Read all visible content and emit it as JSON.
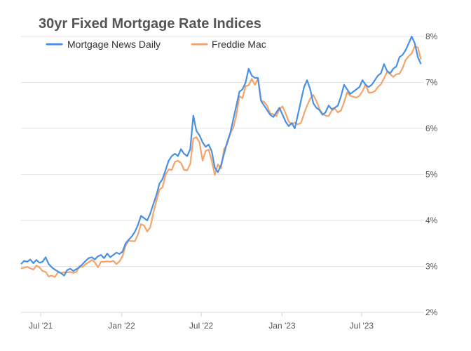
{
  "chart_data": {
    "type": "line",
    "title": "30yr Fixed Mortgage Rate Indices",
    "xlabel": "",
    "ylabel": "",
    "legend_position": "top-left",
    "grid": true,
    "ylim": [
      2,
      8
    ],
    "y_ticks": [
      {
        "value": 2,
        "label": "2%"
      },
      {
        "value": 3,
        "label": "3%"
      },
      {
        "value": 4,
        "label": "4%"
      },
      {
        "value": 5,
        "label": "5%"
      },
      {
        "value": 6,
        "label": "6%"
      },
      {
        "value": 7,
        "label": "7%"
      },
      {
        "value": 8,
        "label": "8%"
      }
    ],
    "x_ticks": [
      {
        "value": "2021-07-01",
        "label": "Jul '21"
      },
      {
        "value": "2022-01-01",
        "label": "Jan '22"
      },
      {
        "value": "2022-07-01",
        "label": "Jul '22"
      },
      {
        "value": "2023-01-01",
        "label": "Jan '23"
      },
      {
        "value": "2023-07-01",
        "label": "Jul '23"
      }
    ],
    "xlim": [
      "2021-05-17",
      "2023-11-20"
    ],
    "series": [
      {
        "name": "Mortgage News Daily",
        "color": "#4a90e2",
        "points": [
          [
            "2021-05-17",
            3.05
          ],
          [
            "2021-05-24",
            3.12
          ],
          [
            "2021-05-31",
            3.1
          ],
          [
            "2021-06-07",
            3.15
          ],
          [
            "2021-06-14",
            3.07
          ],
          [
            "2021-06-21",
            3.14
          ],
          [
            "2021-06-28",
            3.08
          ],
          [
            "2021-07-05",
            3.1
          ],
          [
            "2021-07-12",
            3.2
          ],
          [
            "2021-07-19",
            3.05
          ],
          [
            "2021-07-26",
            2.98
          ],
          [
            "2021-08-02",
            2.93
          ],
          [
            "2021-08-09",
            2.89
          ],
          [
            "2021-08-16",
            2.85
          ],
          [
            "2021-08-23",
            2.8
          ],
          [
            "2021-08-30",
            2.92
          ],
          [
            "2021-09-06",
            2.95
          ],
          [
            "2021-09-13",
            2.9
          ],
          [
            "2021-09-20",
            2.94
          ],
          [
            "2021-09-27",
            2.98
          ],
          [
            "2021-10-04",
            3.05
          ],
          [
            "2021-10-11",
            3.12
          ],
          [
            "2021-10-18",
            3.18
          ],
          [
            "2021-10-25",
            3.2
          ],
          [
            "2021-11-01",
            3.15
          ],
          [
            "2021-11-08",
            3.22
          ],
          [
            "2021-11-15",
            3.25
          ],
          [
            "2021-11-22",
            3.18
          ],
          [
            "2021-11-29",
            3.28
          ],
          [
            "2021-12-06",
            3.2
          ],
          [
            "2021-12-13",
            3.25
          ],
          [
            "2021-12-20",
            3.3
          ],
          [
            "2021-12-27",
            3.27
          ],
          [
            "2022-01-03",
            3.32
          ],
          [
            "2022-01-10",
            3.5
          ],
          [
            "2022-01-17",
            3.58
          ],
          [
            "2022-01-24",
            3.65
          ],
          [
            "2022-01-31",
            3.75
          ],
          [
            "2022-02-07",
            3.9
          ],
          [
            "2022-02-14",
            4.1
          ],
          [
            "2022-02-21",
            4.05
          ],
          [
            "2022-02-28",
            4.0
          ],
          [
            "2022-03-07",
            4.15
          ],
          [
            "2022-03-14",
            4.35
          ],
          [
            "2022-03-21",
            4.55
          ],
          [
            "2022-03-28",
            4.8
          ],
          [
            "2022-04-04",
            4.9
          ],
          [
            "2022-04-11",
            5.1
          ],
          [
            "2022-04-18",
            5.3
          ],
          [
            "2022-04-25",
            5.4
          ],
          [
            "2022-05-02",
            5.45
          ],
          [
            "2022-05-09",
            5.4
          ],
          [
            "2022-05-16",
            5.55
          ],
          [
            "2022-05-23",
            5.45
          ],
          [
            "2022-05-30",
            5.4
          ],
          [
            "2022-06-06",
            5.55
          ],
          [
            "2022-06-13",
            6.28
          ],
          [
            "2022-06-20",
            5.95
          ],
          [
            "2022-06-27",
            5.85
          ],
          [
            "2022-07-04",
            5.7
          ],
          [
            "2022-07-11",
            5.6
          ],
          [
            "2022-07-18",
            5.65
          ],
          [
            "2022-07-25",
            5.5
          ],
          [
            "2022-08-01",
            5.15
          ],
          [
            "2022-08-08",
            5.05
          ],
          [
            "2022-08-15",
            5.2
          ],
          [
            "2022-08-22",
            5.45
          ],
          [
            "2022-08-29",
            5.7
          ],
          [
            "2022-09-05",
            5.9
          ],
          [
            "2022-09-12",
            6.2
          ],
          [
            "2022-09-19",
            6.5
          ],
          [
            "2022-09-26",
            6.8
          ],
          [
            "2022-10-03",
            6.85
          ],
          [
            "2022-10-10",
            7.0
          ],
          [
            "2022-10-17",
            7.3
          ],
          [
            "2022-10-24",
            7.15
          ],
          [
            "2022-10-31",
            7.1
          ],
          [
            "2022-11-07",
            7.1
          ],
          [
            "2022-11-14",
            6.6
          ],
          [
            "2022-11-21",
            6.5
          ],
          [
            "2022-11-28",
            6.4
          ],
          [
            "2022-12-05",
            6.3
          ],
          [
            "2022-12-12",
            6.25
          ],
          [
            "2022-12-19",
            6.35
          ],
          [
            "2022-12-26",
            6.45
          ],
          [
            "2023-01-02",
            6.3
          ],
          [
            "2023-01-09",
            6.15
          ],
          [
            "2023-01-16",
            6.05
          ],
          [
            "2023-01-23",
            6.12
          ],
          [
            "2023-01-30",
            6.0
          ],
          [
            "2023-02-06",
            6.3
          ],
          [
            "2023-02-13",
            6.6
          ],
          [
            "2023-02-20",
            6.9
          ],
          [
            "2023-02-27",
            7.05
          ],
          [
            "2023-03-06",
            6.85
          ],
          [
            "2023-03-13",
            6.55
          ],
          [
            "2023-03-20",
            6.45
          ],
          [
            "2023-03-27",
            6.4
          ],
          [
            "2023-04-03",
            6.3
          ],
          [
            "2023-04-10",
            6.35
          ],
          [
            "2023-04-17",
            6.5
          ],
          [
            "2023-04-24",
            6.42
          ],
          [
            "2023-05-01",
            6.45
          ],
          [
            "2023-05-08",
            6.5
          ],
          [
            "2023-05-15",
            6.7
          ],
          [
            "2023-05-22",
            6.95
          ],
          [
            "2023-05-29",
            6.85
          ],
          [
            "2023-06-05",
            6.75
          ],
          [
            "2023-06-12",
            6.8
          ],
          [
            "2023-06-19",
            6.85
          ],
          [
            "2023-06-26",
            6.9
          ],
          [
            "2023-07-03",
            7.05
          ],
          [
            "2023-07-10",
            6.95
          ],
          [
            "2023-07-17",
            6.9
          ],
          [
            "2023-07-24",
            6.95
          ],
          [
            "2023-07-31",
            7.05
          ],
          [
            "2023-08-07",
            7.15
          ],
          [
            "2023-08-14",
            7.2
          ],
          [
            "2023-08-21",
            7.4
          ],
          [
            "2023-08-28",
            7.25
          ],
          [
            "2023-09-04",
            7.2
          ],
          [
            "2023-09-11",
            7.3
          ],
          [
            "2023-09-18",
            7.35
          ],
          [
            "2023-09-25",
            7.55
          ],
          [
            "2023-10-02",
            7.6
          ],
          [
            "2023-10-09",
            7.7
          ],
          [
            "2023-10-16",
            7.85
          ],
          [
            "2023-10-23",
            8.0
          ],
          [
            "2023-10-30",
            7.85
          ],
          [
            "2023-11-06",
            7.55
          ],
          [
            "2023-11-13",
            7.4
          ]
        ]
      },
      {
        "name": "Freddie Mac",
        "color": "#f4a46a",
        "points": [
          [
            "2021-05-17",
            2.96
          ],
          [
            "2021-05-24",
            2.97
          ],
          [
            "2021-05-31",
            2.99
          ],
          [
            "2021-06-07",
            2.96
          ],
          [
            "2021-06-14",
            2.93
          ],
          [
            "2021-06-21",
            3.02
          ],
          [
            "2021-06-28",
            2.98
          ],
          [
            "2021-07-05",
            2.9
          ],
          [
            "2021-07-12",
            2.88
          ],
          [
            "2021-07-19",
            2.78
          ],
          [
            "2021-07-26",
            2.8
          ],
          [
            "2021-08-02",
            2.77
          ],
          [
            "2021-08-09",
            2.87
          ],
          [
            "2021-08-16",
            2.86
          ],
          [
            "2021-08-23",
            2.87
          ],
          [
            "2021-08-30",
            2.87
          ],
          [
            "2021-09-06",
            2.88
          ],
          [
            "2021-09-13",
            2.86
          ],
          [
            "2021-09-20",
            2.88
          ],
          [
            "2021-09-27",
            3.01
          ],
          [
            "2021-10-04",
            2.99
          ],
          [
            "2021-10-11",
            3.05
          ],
          [
            "2021-10-18",
            3.09
          ],
          [
            "2021-10-25",
            3.14
          ],
          [
            "2021-11-01",
            3.09
          ],
          [
            "2021-11-08",
            2.98
          ],
          [
            "2021-11-15",
            3.1
          ],
          [
            "2021-11-22",
            3.1
          ],
          [
            "2021-11-29",
            3.11
          ],
          [
            "2021-12-06",
            3.1
          ],
          [
            "2021-12-13",
            3.12
          ],
          [
            "2021-12-20",
            3.05
          ],
          [
            "2021-12-27",
            3.11
          ],
          [
            "2022-01-03",
            3.22
          ],
          [
            "2022-01-10",
            3.45
          ],
          [
            "2022-01-17",
            3.56
          ],
          [
            "2022-01-24",
            3.55
          ],
          [
            "2022-01-31",
            3.55
          ],
          [
            "2022-02-07",
            3.69
          ],
          [
            "2022-02-14",
            3.92
          ],
          [
            "2022-02-21",
            3.89
          ],
          [
            "2022-02-28",
            3.76
          ],
          [
            "2022-03-07",
            3.85
          ],
          [
            "2022-03-14",
            4.16
          ],
          [
            "2022-03-21",
            4.42
          ],
          [
            "2022-03-28",
            4.67
          ],
          [
            "2022-04-04",
            4.72
          ],
          [
            "2022-04-11",
            5.0
          ],
          [
            "2022-04-18",
            5.11
          ],
          [
            "2022-04-25",
            5.1
          ],
          [
            "2022-05-02",
            5.27
          ],
          [
            "2022-05-09",
            5.3
          ],
          [
            "2022-05-16",
            5.25
          ],
          [
            "2022-05-23",
            5.1
          ],
          [
            "2022-05-30",
            5.09
          ],
          [
            "2022-06-06",
            5.23
          ],
          [
            "2022-06-13",
            5.78
          ],
          [
            "2022-06-20",
            5.81
          ],
          [
            "2022-06-27",
            5.7
          ],
          [
            "2022-07-04",
            5.3
          ],
          [
            "2022-07-11",
            5.51
          ],
          [
            "2022-07-18",
            5.54
          ],
          [
            "2022-07-25",
            5.3
          ],
          [
            "2022-08-01",
            4.99
          ],
          [
            "2022-08-08",
            5.22
          ],
          [
            "2022-08-15",
            5.13
          ],
          [
            "2022-08-22",
            5.55
          ],
          [
            "2022-08-29",
            5.66
          ],
          [
            "2022-09-05",
            5.89
          ],
          [
            "2022-09-12",
            6.02
          ],
          [
            "2022-09-19",
            6.29
          ],
          [
            "2022-09-26",
            6.7
          ],
          [
            "2022-10-03",
            6.66
          ],
          [
            "2022-10-10",
            6.92
          ],
          [
            "2022-10-17",
            6.94
          ],
          [
            "2022-10-24",
            7.08
          ],
          [
            "2022-10-31",
            6.95
          ],
          [
            "2022-11-07",
            7.08
          ],
          [
            "2022-11-14",
            6.61
          ],
          [
            "2022-11-21",
            6.58
          ],
          [
            "2022-11-28",
            6.49
          ],
          [
            "2022-12-05",
            6.33
          ],
          [
            "2022-12-12",
            6.31
          ],
          [
            "2022-12-19",
            6.27
          ],
          [
            "2022-12-26",
            6.42
          ],
          [
            "2023-01-02",
            6.48
          ],
          [
            "2023-01-09",
            6.33
          ],
          [
            "2023-01-16",
            6.15
          ],
          [
            "2023-01-23",
            6.09
          ],
          [
            "2023-01-30",
            6.13
          ],
          [
            "2023-02-06",
            6.09
          ],
          [
            "2023-02-13",
            6.12
          ],
          [
            "2023-02-20",
            6.32
          ],
          [
            "2023-02-27",
            6.5
          ],
          [
            "2023-03-06",
            6.65
          ],
          [
            "2023-03-13",
            6.73
          ],
          [
            "2023-03-20",
            6.6
          ],
          [
            "2023-03-27",
            6.42
          ],
          [
            "2023-04-03",
            6.32
          ],
          [
            "2023-04-10",
            6.28
          ],
          [
            "2023-04-17",
            6.27
          ],
          [
            "2023-04-24",
            6.39
          ],
          [
            "2023-05-01",
            6.43
          ],
          [
            "2023-05-08",
            6.35
          ],
          [
            "2023-05-15",
            6.39
          ],
          [
            "2023-05-22",
            6.57
          ],
          [
            "2023-05-29",
            6.79
          ],
          [
            "2023-06-05",
            6.71
          ],
          [
            "2023-06-12",
            6.69
          ],
          [
            "2023-06-19",
            6.67
          ],
          [
            "2023-06-26",
            6.71
          ],
          [
            "2023-07-03",
            6.81
          ],
          [
            "2023-07-10",
            6.96
          ],
          [
            "2023-07-17",
            6.78
          ],
          [
            "2023-07-24",
            6.78
          ],
          [
            "2023-07-31",
            6.81
          ],
          [
            "2023-08-07",
            6.9
          ],
          [
            "2023-08-14",
            6.96
          ],
          [
            "2023-08-21",
            7.09
          ],
          [
            "2023-08-28",
            7.23
          ],
          [
            "2023-09-04",
            7.18
          ],
          [
            "2023-09-11",
            7.12
          ],
          [
            "2023-09-18",
            7.18
          ],
          [
            "2023-09-25",
            7.19
          ],
          [
            "2023-10-02",
            7.31
          ],
          [
            "2023-10-09",
            7.49
          ],
          [
            "2023-10-16",
            7.57
          ],
          [
            "2023-10-23",
            7.63
          ],
          [
            "2023-10-30",
            7.79
          ],
          [
            "2023-11-06",
            7.76
          ],
          [
            "2023-11-13",
            7.5
          ]
        ]
      }
    ]
  }
}
